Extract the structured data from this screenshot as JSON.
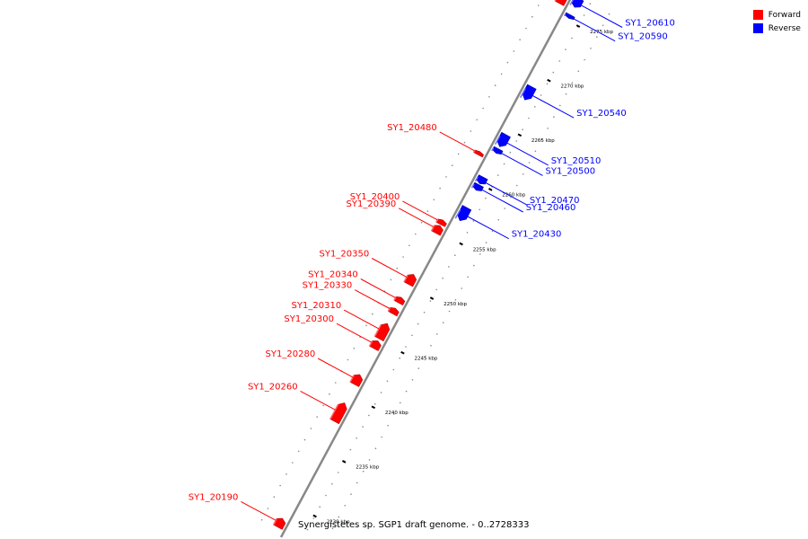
{
  "genome": {
    "caption": "Synergistetes sp. SGP1 draft genome. - 0..2728333",
    "window_kbp": [
      2227.2,
      2277.2
    ]
  },
  "legend": {
    "forward_label": "Forward",
    "reverse_label": "Reverse",
    "forward_color": "#ff0000",
    "reverse_color": "#0000ff"
  },
  "ticks": [
    {
      "pos": 2230,
      "label": "2230 kbp"
    },
    {
      "pos": 2235,
      "label": "2235 kbp"
    },
    {
      "pos": 2240,
      "label": "2240 kbp"
    },
    {
      "pos": 2245,
      "label": "2245 kbp"
    },
    {
      "pos": 2250,
      "label": "2250 kbp"
    },
    {
      "pos": 2255,
      "label": "2255 kbp"
    },
    {
      "pos": 2260,
      "label": "2260 kbp"
    },
    {
      "pos": 2265,
      "label": "2265 kbp"
    },
    {
      "pos": 2270,
      "label": "2270 kbp"
    },
    {
      "pos": 2275,
      "label": "2275 kbp"
    }
  ],
  "genes": [
    {
      "name": "SY1_20190",
      "strand": "forward",
      "start": 2227.8,
      "end": 2228.6
    },
    {
      "name": "SY1_20260",
      "strand": "forward",
      "start": 2237.5,
      "end": 2239.2
    },
    {
      "name": "SY1_20280",
      "strand": "forward",
      "start": 2240.9,
      "end": 2241.8
    },
    {
      "name": "SY1_20300",
      "strand": "forward",
      "start": 2244.2,
      "end": 2244.9
    },
    {
      "name": "SY1_20310",
      "strand": "forward",
      "start": 2245.1,
      "end": 2246.5
    },
    {
      "name": "SY1_20330",
      "strand": "forward",
      "start": 2247.4,
      "end": 2247.9
    },
    {
      "name": "SY1_20340",
      "strand": "forward",
      "start": 2248.4,
      "end": 2248.9
    },
    {
      "name": "SY1_20350",
      "strand": "forward",
      "start": 2250.1,
      "end": 2251.0
    },
    {
      "name": "SY1_20390",
      "strand": "forward",
      "start": 2254.8,
      "end": 2255.5
    },
    {
      "name": "SY1_20400",
      "strand": "forward",
      "start": 2255.6,
      "end": 2256.0
    },
    {
      "name": "SY1_20430",
      "strand": "reverse",
      "start": 2256.6,
      "end": 2257.8
    },
    {
      "name": "SY1_20460",
      "strand": "reverse",
      "start": 2259.4,
      "end": 2259.9
    },
    {
      "name": "SY1_20470",
      "strand": "reverse",
      "start": 2260.0,
      "end": 2260.6
    },
    {
      "name": "SY1_20480",
      "strand": "forward",
      "start": 2262.0,
      "end": 2262.3
    },
    {
      "name": "SY1_20500",
      "strand": "reverse",
      "start": 2262.8,
      "end": 2263.2
    },
    {
      "name": "SY1_20510",
      "strand": "reverse",
      "start": 2263.4,
      "end": 2264.5
    },
    {
      "name": "SY1_20540",
      "strand": "reverse",
      "start": 2267.7,
      "end": 2268.9
    },
    {
      "name": "SY1_20590",
      "strand": "reverse",
      "start": 2275.2,
      "end": 2275.5
    },
    {
      "name": "SY1_20610",
      "strand": "reverse",
      "start": 2276.2,
      "end": 2277.0
    },
    {
      "name": "",
      "strand": "forward",
      "start": 2275.9,
      "end": 2277.2
    }
  ]
}
